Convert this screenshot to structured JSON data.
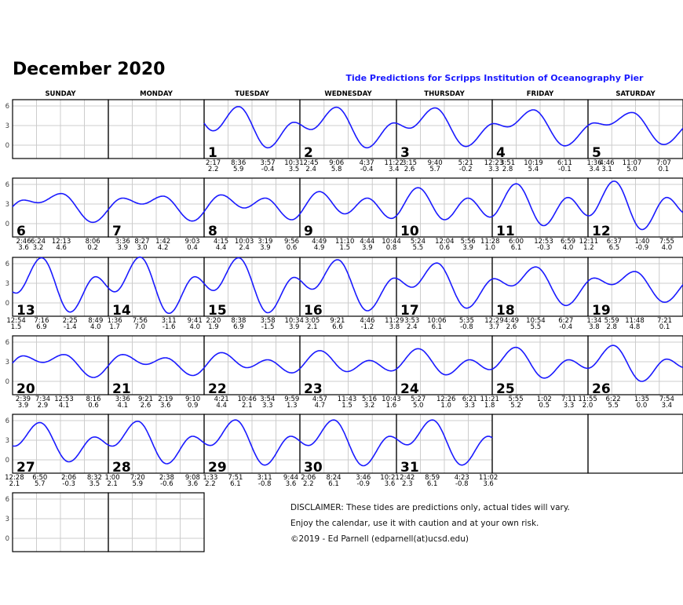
{
  "title": "December 2020",
  "subtitle": "Tide Predictions for Scripps Institution of Oceanography Pier",
  "weekdays": [
    "SUNDAY",
    "MONDAY",
    "TUESDAY",
    "WEDNESDAY",
    "THURSDAY",
    "FRIDAY",
    "SATURDAY"
  ],
  "disclaimer": [
    "DISCLAIMER: These tides are predictions only, actual tides will vary.",
    "Enjoy the calendar, use it with caution and at your own risk.",
    "©2019 - Ed Parnell (edparnell(at)ucsd.edu)"
  ],
  "colors": {
    "tide_curve": "#1a1aff",
    "grid": "#cccccc",
    "border": "#000000",
    "subtitle": "#1a1aff"
  },
  "chart_data": {
    "type": "line",
    "title": "Tide Predictions for Scripps Institution of Oceanography Pier",
    "month": "December 2020",
    "first_weekday": "TUESDAY",
    "y_ticks": [
      0,
      3,
      6
    ],
    "ylim": [
      -2,
      7
    ],
    "x_grid_hours": [
      0,
      6,
      12,
      18,
      24
    ],
    "grid": true,
    "days": [
      {
        "day": 1,
        "tides": [
          [
            "2:17",
            "2.2"
          ],
          [
            "8:36",
            "5.9"
          ],
          [
            "3:57",
            "-0.4"
          ],
          [
            "10:31",
            "3.5"
          ]
        ]
      },
      {
        "day": 2,
        "tides": [
          [
            "2:45",
            "2.4"
          ],
          [
            "9:06",
            "5.8"
          ],
          [
            "4:37",
            "-0.4"
          ],
          [
            "11:22",
            "3.4"
          ]
        ]
      },
      {
        "day": 3,
        "tides": [
          [
            "3:15",
            "2.6"
          ],
          [
            "9:40",
            "5.7"
          ],
          [
            "5:21",
            "-0.2"
          ]
        ]
      },
      {
        "day": 4,
        "tides": [
          [
            "12:23",
            "3.3"
          ],
          [
            "3:51",
            "2.8"
          ],
          [
            "10:19",
            "5.4"
          ],
          [
            "6:11",
            "-0.1"
          ]
        ]
      },
      {
        "day": 5,
        "tides": [
          [
            "1:36",
            "3.4"
          ],
          [
            "4:46",
            "3.1"
          ],
          [
            "11:07",
            "5.0"
          ],
          [
            "7:07",
            "0.1"
          ]
        ]
      },
      {
        "day": 6,
        "tides": [
          [
            "2:46",
            "3.6"
          ],
          [
            "6:24",
            "3.2"
          ],
          [
            "12:13",
            "4.6"
          ],
          [
            "8:06",
            "0.2"
          ]
        ]
      },
      {
        "day": 7,
        "tides": [
          [
            "3:36",
            "3.9"
          ],
          [
            "8:27",
            "3.0"
          ],
          [
            "1:42",
            "4.2"
          ],
          [
            "9:03",
            "0.4"
          ]
        ]
      },
      {
        "day": 8,
        "tides": [
          [
            "4:15",
            "4.4"
          ],
          [
            "10:03",
            "2.4"
          ],
          [
            "3:19",
            "3.9"
          ],
          [
            "9:56",
            "0.6"
          ]
        ]
      },
      {
        "day": 9,
        "tides": [
          [
            "4:49",
            "4.9"
          ],
          [
            "11:10",
            "1.5"
          ],
          [
            "4:44",
            "3.9"
          ],
          [
            "10:44",
            "0.8"
          ]
        ]
      },
      {
        "day": 10,
        "tides": [
          [
            "5:24",
            "5.5"
          ],
          [
            "12:04",
            "0.6"
          ],
          [
            "5:56",
            "3.9"
          ],
          [
            "11:28",
            "1.0"
          ]
        ]
      },
      {
        "day": 11,
        "tides": [
          [
            "6:00",
            "6.1"
          ],
          [
            "12:53",
            "-0.3"
          ],
          [
            "6:59",
            "4.0"
          ]
        ]
      },
      {
        "day": 12,
        "tides": [
          [
            "12:11",
            "1.2"
          ],
          [
            "6:37",
            "6.5"
          ],
          [
            "1:40",
            "-0.9"
          ],
          [
            "7:55",
            "4.0"
          ]
        ]
      },
      {
        "day": 13,
        "tides": [
          [
            "12:54",
            "1.5"
          ],
          [
            "7:16",
            "6.9"
          ],
          [
            "2:25",
            "-1.4"
          ],
          [
            "8:49",
            "4.0"
          ]
        ]
      },
      {
        "day": 14,
        "tides": [
          [
            "1:36",
            "1.7"
          ],
          [
            "7:56",
            "7.0"
          ],
          [
            "3:11",
            "-1.6"
          ],
          [
            "9:41",
            "4.0"
          ]
        ]
      },
      {
        "day": 15,
        "tides": [
          [
            "2:20",
            "1.9"
          ],
          [
            "8:38",
            "6.9"
          ],
          [
            "3:58",
            "-1.5"
          ],
          [
            "10:34",
            "3.9"
          ]
        ]
      },
      {
        "day": 16,
        "tides": [
          [
            "3:05",
            "2.1"
          ],
          [
            "9:21",
            "6.6"
          ],
          [
            "4:46",
            "-1.2"
          ],
          [
            "11:29",
            "3.8"
          ]
        ]
      },
      {
        "day": 17,
        "tides": [
          [
            "3:53",
            "2.4"
          ],
          [
            "10:06",
            "6.1"
          ],
          [
            "5:35",
            "-0.8"
          ]
        ]
      },
      {
        "day": 18,
        "tides": [
          [
            "12:29",
            "3.7"
          ],
          [
            "4:49",
            "2.6"
          ],
          [
            "10:54",
            "5.5"
          ],
          [
            "6:27",
            "-0.4"
          ]
        ]
      },
      {
        "day": 19,
        "tides": [
          [
            "1:34",
            "3.8"
          ],
          [
            "5:59",
            "2.8"
          ],
          [
            "11:48",
            "4.8"
          ],
          [
            "7:21",
            "0.1"
          ]
        ]
      },
      {
        "day": 20,
        "tides": [
          [
            "2:39",
            "3.9"
          ],
          [
            "7:34",
            "2.9"
          ],
          [
            "12:53",
            "4.1"
          ],
          [
            "8:16",
            "0.6"
          ]
        ]
      },
      {
        "day": 21,
        "tides": [
          [
            "3:36",
            "4.1"
          ],
          [
            "9:21",
            "2.6"
          ],
          [
            "2:19",
            "3.6"
          ],
          [
            "9:10",
            "0.9"
          ]
        ]
      },
      {
        "day": 22,
        "tides": [
          [
            "4:21",
            "4.4"
          ],
          [
            "10:46",
            "2.1"
          ],
          [
            "3:54",
            "3.3"
          ],
          [
            "9:59",
            "1.3"
          ]
        ]
      },
      {
        "day": 23,
        "tides": [
          [
            "4:57",
            "4.7"
          ],
          [
            "11:43",
            "1.5"
          ],
          [
            "5:16",
            "3.2"
          ],
          [
            "10:43",
            "1.6"
          ]
        ]
      },
      {
        "day": 24,
        "tides": [
          [
            "5:27",
            "5.0"
          ],
          [
            "12:26",
            "1.0"
          ],
          [
            "6:21",
            "3.3"
          ],
          [
            "11:21",
            "1.8"
          ]
        ]
      },
      {
        "day": 25,
        "tides": [
          [
            "5:55",
            "5.2"
          ],
          [
            "1:02",
            "0.5"
          ],
          [
            "7:11",
            "3.3"
          ],
          [
            "11:55",
            "2.0"
          ]
        ]
      },
      {
        "day": 26,
        "tides": [
          [
            "6:22",
            "5.5"
          ],
          [
            "1:35",
            "0.0"
          ],
          [
            "7:54",
            "3.4"
          ]
        ]
      },
      {
        "day": 27,
        "tides": [
          [
            "12:28",
            "2.1"
          ],
          [
            "6:50",
            "5.7"
          ],
          [
            "2:06",
            "-0.3"
          ],
          [
            "8:32",
            "3.5"
          ]
        ]
      },
      {
        "day": 28,
        "tides": [
          [
            "1:00",
            "2.1"
          ],
          [
            "7:20",
            "5.9"
          ],
          [
            "2:38",
            "-0.6"
          ],
          [
            "9:08",
            "3.6"
          ]
        ]
      },
      {
        "day": 29,
        "tides": [
          [
            "1:33",
            "2.2"
          ],
          [
            "7:51",
            "6.1"
          ],
          [
            "3:11",
            "-0.8"
          ],
          [
            "9:44",
            "3.6"
          ]
        ]
      },
      {
        "day": 30,
        "tides": [
          [
            "2:06",
            "2.2"
          ],
          [
            "8:24",
            "6.1"
          ],
          [
            "3:46",
            "-0.9"
          ],
          [
            "10:21",
            "3.6"
          ]
        ]
      },
      {
        "day": 31,
        "tides": [
          [
            "2:42",
            "2.3"
          ],
          [
            "8:59",
            "6.1"
          ],
          [
            "4:23",
            "-0.8"
          ],
          [
            "11:02",
            "3.6"
          ]
        ]
      }
    ]
  }
}
